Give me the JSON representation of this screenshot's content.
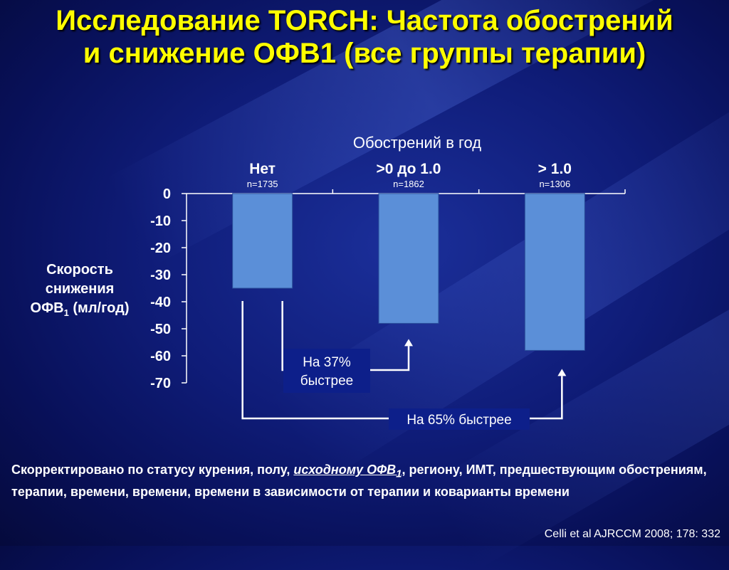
{
  "title": {
    "line1": "Исследование TORCH: Частота обострений",
    "line2": "и снижение ОФВ1 (все группы терапии)"
  },
  "chart_data": {
    "type": "bar",
    "title": "Обострений в год",
    "categories": [
      "Нет",
      ">0 до 1.0",
      "> 1.0"
    ],
    "sample_sizes": [
      "n=1735",
      "n=1862",
      "n=1306"
    ],
    "values": [
      -35,
      -48,
      -58
    ],
    "ylabel_lines": [
      "Скорость",
      "снижения"
    ],
    "ylabel_last_main": "ОФВ",
    "ylabel_last_sub": "1",
    "ylabel_last_rest": " (мл/год)",
    "ylim": [
      -70,
      0
    ],
    "yticks": [
      0,
      -10,
      -20,
      -30,
      -40,
      -50,
      -60,
      -70
    ],
    "bar_color": "#5b8fd8",
    "annotations": [
      {
        "from": 0,
        "to": 1,
        "label_lines": [
          "На 37%",
          "быстрее"
        ]
      },
      {
        "from": 0,
        "to": 2,
        "label_lines": [
          "На 65% быстрее"
        ]
      }
    ]
  },
  "footnote": {
    "prefix": "Скорректировано по статусу курения, полу, ",
    "underlined_main": "исходному ОФВ",
    "underlined_sub": "1",
    "suffix": ", региону, ИМТ, предшествующим обострениям, терапии, времени, времени, времени в зависимости от терапии и коварианты времени"
  },
  "citation": "Celli et al AJRCCM 2008; 178: 332"
}
